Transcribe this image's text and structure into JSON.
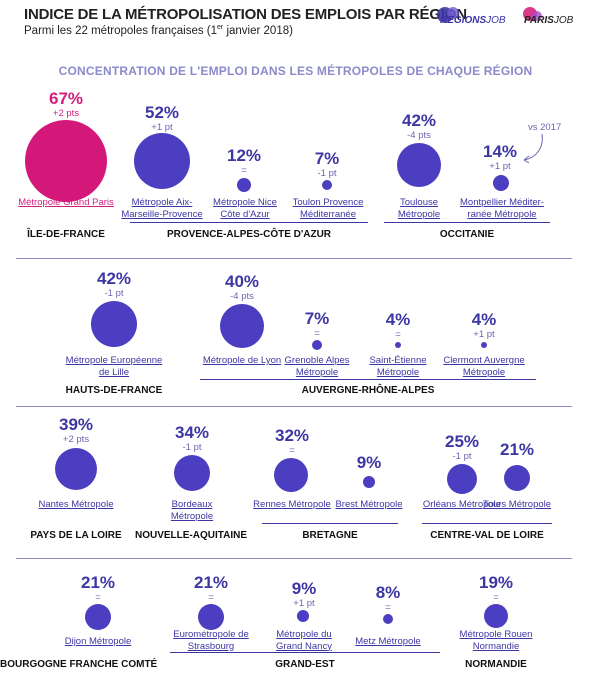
{
  "header": {
    "title": "INDICE DE LA MÉTROPOLISATION DES EMPLOIS PAR RÉGION",
    "subtitle_main": "Parmi les 22 métropoles françaises (1",
    "subtitle_sup": "er",
    "subtitle_end": " janvier 2018)",
    "logo_regionsjob_a": "REGIONS",
    "logo_regionsjob_b": "JOB",
    "logo_parisjob_a": "PARIS",
    "logo_parisjob_b": "JOB"
  },
  "section_title": "CONCENTRATION DE L'EMPLOI DANS LES MÉTROPOLES DE CHAQUE RÉGION",
  "vs_note": "vs 2017",
  "colors": {
    "accent": "#4b3ec0",
    "highlight": "#d4187a",
    "header_text": "#8c8acb"
  },
  "metros": [
    {
      "pct": "67%",
      "chg": "+2 pts",
      "label": "Métropole Grand Paris"
    },
    {
      "pct": "52%",
      "chg": "+1 pt",
      "label": "Métropole Aix-Marseille-Provence"
    },
    {
      "pct": "12%",
      "chg": "=",
      "label": "Métropole Nice Côte d'Azur"
    },
    {
      "pct": "7%",
      "chg": "-1 pt",
      "label": "Toulon Provence Méditerranée"
    },
    {
      "pct": "42%",
      "chg": "-4 pts",
      "label": "Toulouse Métropole"
    },
    {
      "pct": "14%",
      "chg": "+1 pt",
      "label": "Montpellier Méditer-ranée Métropole"
    },
    {
      "pct": "42%",
      "chg": "-1 pt",
      "label": "Métropole Européenne de Lille"
    },
    {
      "pct": "40%",
      "chg": "-4 pts",
      "label": "Métropole de Lyon"
    },
    {
      "pct": "7%",
      "chg": "=",
      "label": "Grenoble Alpes Métropole"
    },
    {
      "pct": "4%",
      "chg": "=",
      "label": "Saint-Étienne Métropole"
    },
    {
      "pct": "4%",
      "chg": "+1 pt",
      "label": "Clermont Auvergne Métropole"
    },
    {
      "pct": "39%",
      "chg": "+2 pts",
      "label": "Nantes Métropole"
    },
    {
      "pct": "34%",
      "chg": "-1 pt",
      "label": "Bordeaux Métropole"
    },
    {
      "pct": "32%",
      "chg": "=",
      "label": "Rennes Métropole"
    },
    {
      "pct": "9%",
      "chg": "",
      "label": "Brest Métropole"
    },
    {
      "pct": "25%",
      "chg": "-1 pt",
      "label": "Orléans Métropole"
    },
    {
      "pct": "21%",
      "chg": "",
      "label": "Tours Métropole"
    },
    {
      "pct": "21%",
      "chg": "=",
      "label": "Dijon Métropole"
    },
    {
      "pct": "21%",
      "chg": "=",
      "label": "Eurométropole de Strasbourg"
    },
    {
      "pct": "9%",
      "chg": "+1 pt",
      "label": "Métropole du Grand Nancy"
    },
    {
      "pct": "8%",
      "chg": "=",
      "label": "Metz Métropole"
    },
    {
      "pct": "19%",
      "chg": "=",
      "label": "Métropole Rouen Normandie"
    }
  ],
  "regions": [
    "ÎLE-DE-FRANCE",
    "PROVENCE-ALPES-CÔTE D'AZUR",
    "OCCITANIE",
    "HAUTS-DE-FRANCE",
    "AUVERGNE-RHÔNE-ALPES",
    "PAYS DE LA LOIRE",
    "NOUVELLE-AQUITAINE",
    "BRETAGNE",
    "CENTRE-VAL DE LOIRE",
    "BOURGOGNE FRANCHE COMTÉ",
    "GRAND-EST",
    "NORMANDIE"
  ]
}
